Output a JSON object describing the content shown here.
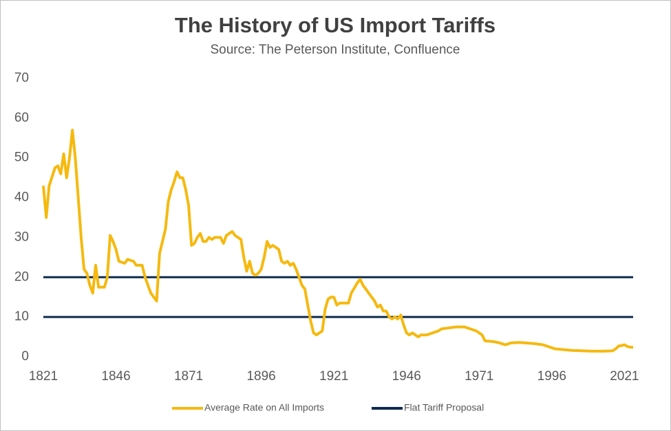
{
  "chart_data": {
    "type": "line",
    "title": "The History of US Import Tariffs",
    "subtitle": "Source: The Peterson Institute, Confluence",
    "x": [
      1821,
      1822,
      1823,
      1825,
      1826,
      1827,
      1828,
      1829,
      1830,
      1831,
      1832,
      1833,
      1834,
      1835,
      1836,
      1837,
      1838,
      1839,
      1840,
      1842,
      1843,
      1844,
      1845,
      1846,
      1847,
      1849,
      1850,
      1852,
      1853,
      1855,
      1856,
      1857,
      1858,
      1859,
      1860,
      1861,
      1862,
      1863,
      1864,
      1865,
      1866,
      1867,
      1868,
      1869,
      1870,
      1871,
      1872,
      1873,
      1874,
      1875,
      1876,
      1877,
      1878,
      1879,
      1880,
      1882,
      1883,
      1884,
      1886,
      1887,
      1889,
      1890,
      1891,
      1892,
      1893,
      1894,
      1895,
      1896,
      1897,
      1898,
      1899,
      1900,
      1901,
      1902,
      1903,
      1904,
      1905,
      1906,
      1907,
      1908,
      1909,
      1910,
      1911,
      1912,
      1913,
      1914,
      1915,
      1916,
      1917,
      1918,
      1919,
      1920,
      1921,
      1922,
      1923,
      1924,
      1926,
      1927,
      1929,
      1930,
      1931,
      1932,
      1933,
      1934,
      1935,
      1936,
      1937,
      1938,
      1939,
      1940,
      1941,
      1942,
      1943,
      1944,
      1945,
      1946,
      1947,
      1948,
      1950,
      1951,
      1953,
      1955,
      1957,
      1958,
      1960,
      1963,
      1966,
      1968,
      1970,
      1972,
      1973,
      1976,
      1978,
      1980,
      1982,
      1985,
      1990,
      1993,
      1995,
      1997,
      2000,
      2003,
      2006,
      2010,
      2014,
      2017,
      2018,
      2019,
      2020,
      2021,
      2022,
      2023,
      2024
    ],
    "series": [
      {
        "name": "Average Rate on All Imports",
        "color": "#f5b90f",
        "values": [
          43,
          35,
          43,
          47.5,
          48,
          46,
          51,
          45,
          50,
          57,
          50,
          40,
          30,
          22,
          21,
          18,
          16,
          23,
          17.5,
          17.5,
          20,
          30.5,
          29,
          27,
          24,
          23.5,
          24.5,
          24,
          23,
          23,
          20,
          18,
          16,
          15,
          14,
          26,
          29,
          32,
          39,
          42,
          44,
          46.5,
          45,
          45,
          42,
          38,
          28,
          28.5,
          30,
          31,
          29,
          29,
          30,
          29.5,
          30,
          30,
          28.5,
          30.5,
          31.5,
          30.5,
          29.5,
          25,
          21.5,
          24,
          21,
          20.5,
          21,
          22,
          25,
          29,
          27.5,
          28,
          27.5,
          27,
          24,
          23.5,
          24,
          23,
          23.5,
          22,
          20,
          18,
          17,
          13,
          9,
          6,
          5.5,
          6,
          6.5,
          12,
          14.5,
          15,
          15,
          13,
          13.5,
          13.5,
          13.5,
          16,
          18.5,
          19.5,
          18,
          17,
          16,
          15,
          14,
          12.5,
          13,
          11.5,
          11.5,
          10,
          9.5,
          10,
          9.5,
          10.5,
          8,
          6,
          5.5,
          6,
          5,
          5.5,
          5.5,
          6,
          6.5,
          7,
          7.2,
          7.5,
          7.5,
          7,
          6.5,
          5.5,
          4,
          3.8,
          3.5,
          3,
          3.5,
          3.6,
          3.3,
          3,
          2.5,
          2,
          1.8,
          1.6,
          1.5,
          1.4,
          1.4,
          1.5,
          2,
          2.7,
          2.8,
          3,
          2.6,
          2.4,
          2.4
        ]
      }
    ],
    "reference_lines": {
      "name": "Flat Tariff Proposal",
      "color": "#0d2b4e",
      "values": [
        20,
        10
      ]
    },
    "xlim": [
      1821,
      2024
    ],
    "xticks": [
      1821,
      1846,
      1871,
      1896,
      1921,
      1946,
      1971,
      1996,
      2021
    ],
    "ylim": [
      0,
      70
    ],
    "yticks": [
      0,
      10,
      20,
      30,
      40,
      50,
      60,
      70
    ],
    "legend": "bottom"
  }
}
